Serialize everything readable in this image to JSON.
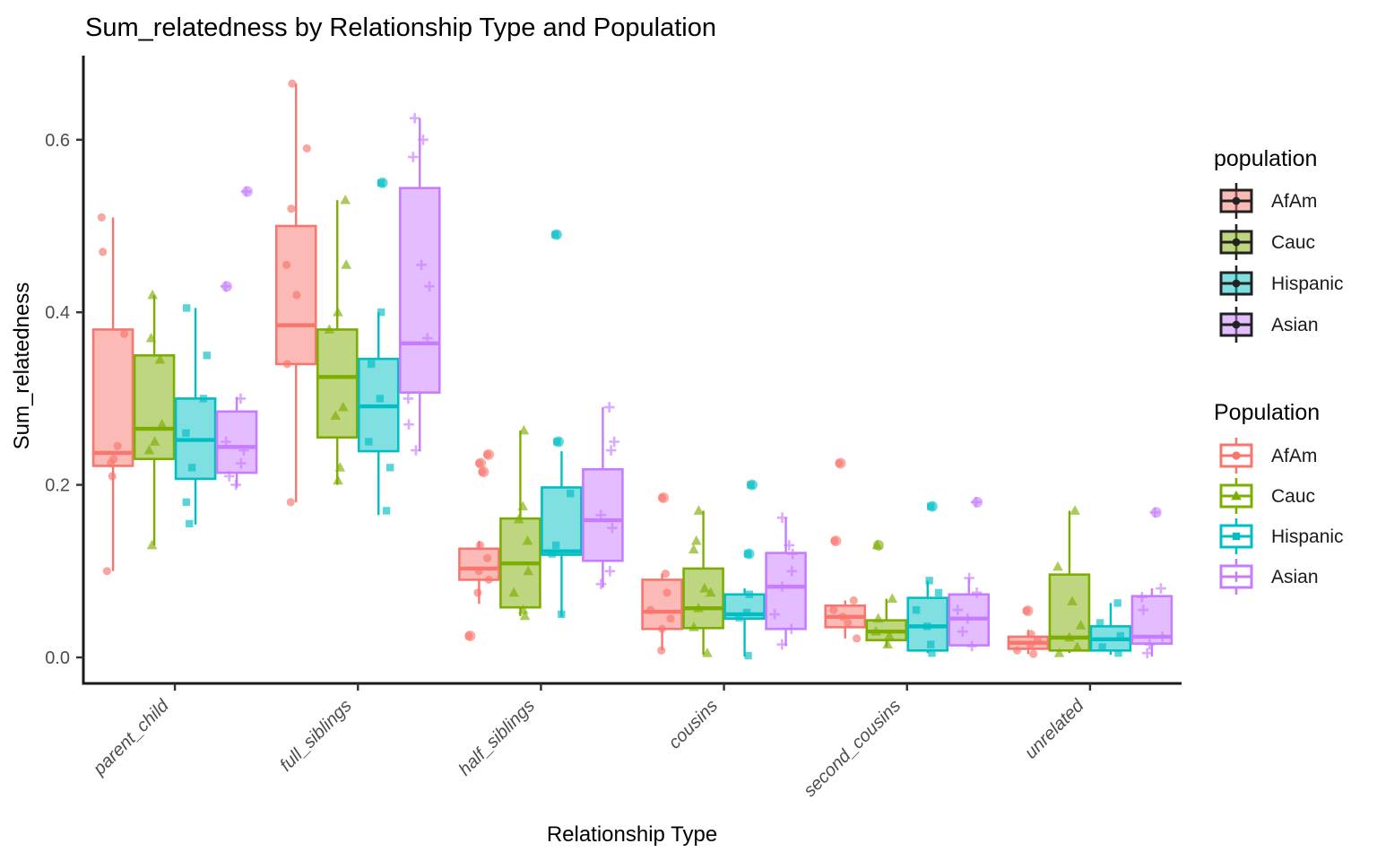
{
  "title": "Sum_relatedness by Relationship Type and Population",
  "x_axis": {
    "label": "Relationship Type",
    "tick_labels": [
      "parent_child",
      "full_siblings",
      "half_siblings",
      "cousins",
      "second_cousins",
      "unrelated"
    ]
  },
  "y_axis": {
    "label": "Sum_relatedness",
    "tick_labels": [
      "0.0",
      "0.2",
      "0.4",
      "0.6"
    ],
    "tick_values": [
      0.0,
      0.2,
      0.4,
      0.6
    ]
  },
  "legends": [
    {
      "title": "population",
      "aesthetic": "fill",
      "entries": [
        {
          "label": "AfAm",
          "color": "#F8766D"
        },
        {
          "label": "Cauc",
          "color": "#7CAE00"
        },
        {
          "label": "Hispanic",
          "color": "#00BFC4"
        },
        {
          "label": "Asian",
          "color": "#C77CFF"
        }
      ]
    },
    {
      "title": "Population",
      "aesthetic": "colour",
      "entries": [
        {
          "label": "AfAm",
          "color": "#F8766D",
          "shape": "circle"
        },
        {
          "label": "Cauc",
          "color": "#7CAE00",
          "shape": "triangle"
        },
        {
          "label": "Hispanic",
          "color": "#00BFC4",
          "shape": "square"
        },
        {
          "label": "Asian",
          "color": "#C77CFF",
          "shape": "plus"
        }
      ]
    }
  ],
  "chart_data": {
    "type": "box",
    "title": "Sum_relatedness by Relationship Type and Population",
    "xlabel": "Relationship Type",
    "ylabel": "Sum_relatedness",
    "ylim": [
      -0.03,
      0.7
    ],
    "grid": false,
    "legend_position": "right",
    "categories": [
      "parent_child",
      "full_siblings",
      "half_siblings",
      "cousins",
      "second_cousins",
      "unrelated"
    ],
    "series": [
      {
        "name": "AfAm",
        "color": "#F8766D",
        "marker": "circle",
        "boxes": [
          {
            "category": "parent_child",
            "lo": 0.1,
            "q1": 0.222,
            "med": 0.237,
            "q3": 0.38,
            "hi": 0.51,
            "points": [
              0.51,
              0.47,
              0.375,
              0.245,
              0.23,
              0.225,
              0.21,
              0.1
            ]
          },
          {
            "category": "full_siblings",
            "lo": 0.18,
            "q1": 0.34,
            "med": 0.385,
            "q3": 0.5,
            "hi": 0.665,
            "points": [
              0.665,
              0.59,
              0.52,
              0.455,
              0.42,
              0.34,
              0.18
            ]
          },
          {
            "category": "half_siblings",
            "lo": 0.062,
            "q1": 0.09,
            "med": 0.103,
            "q3": 0.126,
            "hi": 0.135,
            "points": [
              0.235,
              0.225,
              0.215,
              0.13,
              0.115,
              0.1,
              0.09,
              0.075,
              0.025
            ]
          },
          {
            "category": "cousins",
            "lo": 0.008,
            "q1": 0.033,
            "med": 0.053,
            "q3": 0.09,
            "hi": 0.097,
            "points": [
              0.185,
              0.097,
              0.075,
              0.055,
              0.045,
              0.033,
              0.008
            ]
          },
          {
            "category": "second_cousins",
            "lo": 0.022,
            "q1": 0.035,
            "med": 0.047,
            "q3": 0.06,
            "hi": 0.066,
            "points": [
              0.225,
              0.135,
              0.066,
              0.055,
              0.047,
              0.04,
              0.022
            ]
          },
          {
            "category": "unrelated",
            "lo": 0.004,
            "q1": 0.01,
            "med": 0.017,
            "q3": 0.024,
            "hi": 0.032,
            "points": [
              0.054,
              0.027,
              0.02,
              0.015,
              0.008,
              0.004
            ]
          }
        ]
      },
      {
        "name": "Cauc",
        "color": "#7CAE00",
        "marker": "triangle",
        "boxes": [
          {
            "category": "parent_child",
            "lo": 0.13,
            "q1": 0.23,
            "med": 0.265,
            "q3": 0.35,
            "hi": 0.42,
            "points": [
              0.42,
              0.37,
              0.345,
              0.27,
              0.25,
              0.24,
              0.13
            ]
          },
          {
            "category": "full_siblings",
            "lo": 0.2,
            "q1": 0.255,
            "med": 0.325,
            "q3": 0.38,
            "hi": 0.53,
            "points": [
              0.53,
              0.455,
              0.4,
              0.38,
              0.29,
              0.28,
              0.22,
              0.205
            ]
          },
          {
            "category": "half_siblings",
            "lo": 0.048,
            "q1": 0.058,
            "med": 0.109,
            "q3": 0.161,
            "hi": 0.263,
            "points": [
              0.263,
              0.175,
              0.16,
              0.135,
              0.1,
              0.075,
              0.055,
              0.048
            ]
          },
          {
            "category": "cousins",
            "lo": 0.003,
            "q1": 0.034,
            "med": 0.057,
            "q3": 0.103,
            "hi": 0.17,
            "points": [
              0.17,
              0.135,
              0.125,
              0.08,
              0.075,
              0.057,
              0.035,
              0.005
            ]
          },
          {
            "category": "second_cousins",
            "lo": 0.012,
            "q1": 0.02,
            "med": 0.03,
            "q3": 0.043,
            "hi": 0.068,
            "points": [
              0.13,
              0.068,
              0.045,
              0.03,
              0.025,
              0.015
            ]
          },
          {
            "category": "unrelated",
            "lo": 0.005,
            "q1": 0.008,
            "med": 0.023,
            "q3": 0.096,
            "hi": 0.17,
            "points": [
              0.17,
              0.105,
              0.065,
              0.037,
              0.023,
              0.012,
              0.005
            ]
          }
        ]
      },
      {
        "name": "Hispanic",
        "color": "#00BFC4",
        "marker": "square",
        "boxes": [
          {
            "category": "parent_child",
            "lo": 0.154,
            "q1": 0.207,
            "med": 0.252,
            "q3": 0.3,
            "hi": 0.405,
            "points": [
              0.405,
              0.35,
              0.3,
              0.26,
              0.22,
              0.18,
              0.155
            ]
          },
          {
            "category": "full_siblings",
            "lo": 0.165,
            "q1": 0.239,
            "med": 0.291,
            "q3": 0.346,
            "hi": 0.4,
            "points": [
              0.55,
              0.4,
              0.34,
              0.3,
              0.25,
              0.22,
              0.17
            ]
          },
          {
            "category": "half_siblings",
            "lo": 0.047,
            "q1": 0.119,
            "med": 0.123,
            "q3": 0.197,
            "hi": 0.239,
            "points": [
              0.49,
              0.25,
              0.19,
              0.13,
              0.12,
              0.05
            ]
          },
          {
            "category": "cousins",
            "lo": 0.001,
            "q1": 0.045,
            "med": 0.05,
            "q3": 0.073,
            "hi": 0.08,
            "points": [
              0.2,
              0.12,
              0.073,
              0.052,
              0.046,
              0.002
            ]
          },
          {
            "category": "second_cousins",
            "lo": 0.005,
            "q1": 0.008,
            "med": 0.036,
            "q3": 0.069,
            "hi": 0.089,
            "points": [
              0.175,
              0.089,
              0.075,
              0.055,
              0.036,
              0.015,
              0.005
            ]
          },
          {
            "category": "unrelated",
            "lo": 0.003,
            "q1": 0.008,
            "med": 0.021,
            "q3": 0.036,
            "hi": 0.063,
            "points": [
              0.063,
              0.04,
              0.025,
              0.012,
              0.005
            ]
          }
        ]
      },
      {
        "name": "Asian",
        "color": "#C77CFF",
        "marker": "plus",
        "boxes": [
          {
            "category": "parent_child",
            "lo": 0.197,
            "q1": 0.214,
            "med": 0.244,
            "q3": 0.285,
            "hi": 0.302,
            "points": [
              0.54,
              0.43,
              0.3,
              0.25,
              0.24,
              0.225,
              0.21,
              0.2
            ]
          },
          {
            "category": "full_siblings",
            "lo": 0.239,
            "q1": 0.307,
            "med": 0.364,
            "q3": 0.544,
            "hi": 0.625,
            "points": [
              0.625,
              0.6,
              0.58,
              0.455,
              0.43,
              0.37,
              0.3,
              0.27,
              0.24
            ]
          },
          {
            "category": "half_siblings",
            "lo": 0.081,
            "q1": 0.112,
            "med": 0.159,
            "q3": 0.218,
            "hi": 0.29,
            "points": [
              0.29,
              0.25,
              0.24,
              0.165,
              0.15,
              0.1,
              0.085
            ]
          },
          {
            "category": "cousins",
            "lo": 0.013,
            "q1": 0.033,
            "med": 0.082,
            "q3": 0.121,
            "hi": 0.162,
            "points": [
              0.162,
              0.13,
              0.12,
              0.1,
              0.082,
              0.05,
              0.033,
              0.015
            ]
          },
          {
            "category": "second_cousins",
            "lo": 0.013,
            "q1": 0.014,
            "med": 0.045,
            "q3": 0.073,
            "hi": 0.092,
            "points": [
              0.18,
              0.092,
              0.075,
              0.055,
              0.045,
              0.03,
              0.013
            ]
          },
          {
            "category": "unrelated",
            "lo": 0.001,
            "q1": 0.016,
            "med": 0.024,
            "q3": 0.071,
            "hi": 0.08,
            "points": [
              0.168,
              0.08,
              0.07,
              0.055,
              0.024,
              0.015,
              0.005
            ]
          }
        ]
      }
    ]
  }
}
